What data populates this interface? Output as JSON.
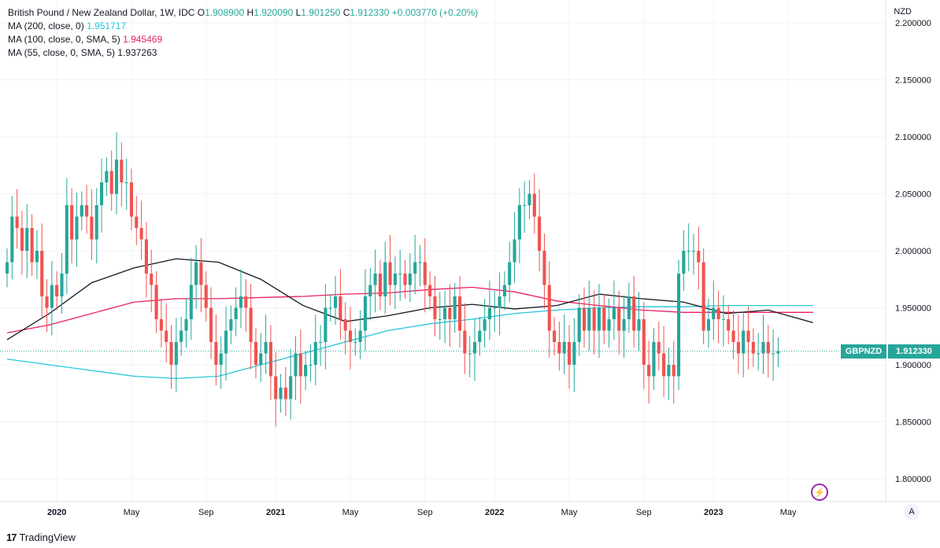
{
  "legend": {
    "symbol_line": "British Pound / New Zealand Dollar, 1W, IDC",
    "o_label": "O",
    "o_value": "1.908900",
    "h_label": "H",
    "h_value": "1.920090",
    "l_label": "L",
    "l_value": "1.901250",
    "c_label": "C",
    "c_value": "1.912330",
    "change": "+0.003770 (+0.20%)",
    "ma200_label": "MA (200, close, 0)",
    "ma200_value": "1.951717",
    "ma100_label": "MA (100, close, 0, SMA, 5)",
    "ma100_value": "1.945469",
    "ma55_label": "MA (55, close, 0, SMA, 5)",
    "ma55_value": "1.937263"
  },
  "axis": {
    "currency": "NZD",
    "auto_label": "A"
  },
  "last_price": {
    "symbol": "GBPNZD",
    "value": "1.912330"
  },
  "brand": {
    "logo": "17",
    "name": "TradingView"
  },
  "colors": {
    "up": "#26a69a",
    "down": "#ef5350",
    "ma200": "#26c6da",
    "ma100": "#e91e63",
    "ma55": "#131722",
    "grid": "#f0f3fa",
    "lightning": "#9c27b0"
  },
  "chart_data": {
    "type": "candlestick",
    "title": "British Pound / New Zealand Dollar, 1W, IDC",
    "ylim": [
      1.78,
      2.22
    ],
    "yticks": [
      "2.200000",
      "2.150000",
      "2.100000",
      "2.050000",
      "2.000000",
      "1.950000",
      "1.900000",
      "1.850000",
      "1.800000"
    ],
    "ytick_values": [
      2.2,
      2.15,
      2.1,
      2.05,
      2.0,
      1.95,
      1.9,
      1.85,
      1.8
    ],
    "xlim": [
      0,
      163
    ],
    "time_labels": [
      {
        "label": "2020",
        "bar": 10,
        "major": true
      },
      {
        "label": "May",
        "bar": 25,
        "major": false
      },
      {
        "label": "Sep",
        "bar": 40,
        "major": false
      },
      {
        "label": "2021",
        "bar": 54,
        "major": true
      },
      {
        "label": "May",
        "bar": 69,
        "major": false
      },
      {
        "label": "Sep",
        "bar": 84,
        "major": false
      },
      {
        "label": "2022",
        "bar": 98,
        "major": true
      },
      {
        "label": "May",
        "bar": 113,
        "major": false
      },
      {
        "label": "Sep",
        "bar": 128,
        "major": false
      },
      {
        "label": "2023",
        "bar": 142,
        "major": true
      },
      {
        "label": "May",
        "bar": 157,
        "major": false
      }
    ],
    "closes": [
      1.99,
      2.03,
      2.02,
      2.0,
      2.02,
      1.99,
      2.0,
      1.96,
      1.95,
      1.97,
      1.96,
      1.98,
      2.04,
      2.01,
      2.03,
      2.04,
      2.03,
      2.01,
      2.04,
      2.06,
      2.07,
      2.05,
      2.08,
      2.06,
      2.06,
      2.03,
      2.02,
      2.01,
      1.98,
      1.97,
      1.94,
      1.93,
      1.92,
      1.9,
      1.92,
      1.93,
      1.94,
      1.97,
      1.99,
      1.97,
      1.95,
      1.92,
      1.9,
      1.91,
      1.93,
      1.94,
      1.95,
      1.96,
      1.95,
      1.92,
      1.9,
      1.91,
      1.92,
      1.89,
      1.87,
      1.88,
      1.87,
      1.89,
      1.91,
      1.89,
      1.9,
      1.9,
      1.92,
      1.92,
      1.95,
      1.95,
      1.96,
      1.94,
      1.93,
      1.92,
      1.92,
      1.93,
      1.96,
      1.97,
      1.98,
      1.96,
      1.99,
      1.97,
      1.98,
      1.98,
      1.97,
      1.98,
      1.99,
      1.99,
      1.97,
      1.96,
      1.94,
      1.94,
      1.95,
      1.94,
      1.96,
      1.93,
      1.91,
      1.91,
      1.92,
      1.93,
      1.94,
      1.95,
      1.95,
      1.96,
      1.97,
      1.99,
      2.01,
      2.04,
      2.04,
      2.05,
      2.03,
      2.0,
      1.97,
      1.93,
      1.92,
      1.91,
      1.92,
      1.9,
      1.92,
      1.95,
      1.93,
      1.95,
      1.93,
      1.95,
      1.93,
      1.94,
      1.95,
      1.93,
      1.94,
      1.96,
      1.93,
      1.94,
      1.9,
      1.89,
      1.92,
      1.91,
      1.89,
      1.9,
      1.89,
      1.98,
      2.0,
      2.0,
      2.0,
      1.99,
      1.93,
      1.94,
      1.95,
      1.94,
      1.94,
      1.93,
      1.92,
      1.91,
      1.93,
      1.92,
      1.91,
      1.91,
      1.92,
      1.91,
      1.91,
      1.912
    ],
    "series": [
      {
        "name": "MA (200, close, 0)",
        "values": [
          1.905,
          1.9,
          1.895,
          1.89,
          1.888,
          1.89,
          1.9,
          1.91,
          1.92,
          1.93,
          1.936,
          1.94,
          1.945,
          1.948,
          1.95,
          1.951,
          1.951,
          1.952,
          1.952,
          1.952
        ]
      },
      {
        "name": "MA (100, close, 0, SMA, 5)",
        "values": [
          1.928,
          1.935,
          1.945,
          1.955,
          1.958,
          1.958,
          1.959,
          1.96,
          1.962,
          1.963,
          1.966,
          1.968,
          1.964,
          1.956,
          1.952,
          1.948,
          1.946,
          1.946,
          1.946,
          1.946
        ]
      },
      {
        "name": "MA (55, close, 0, SMA, 5)",
        "values": [
          1.922,
          1.945,
          1.972,
          1.985,
          1.993,
          1.99,
          1.975,
          1.952,
          1.938,
          1.943,
          1.95,
          1.953,
          1.949,
          1.952,
          1.962,
          1.958,
          1.955,
          1.945,
          1.948,
          1.937
        ]
      }
    ],
    "ma_x_bars": [
      0,
      8.5,
      17,
      25.5,
      34,
      42.5,
      51,
      59.5,
      68,
      76.5,
      85,
      93.5,
      102,
      110.5,
      119,
      127.5,
      136,
      144.5,
      153,
      162
    ]
  }
}
